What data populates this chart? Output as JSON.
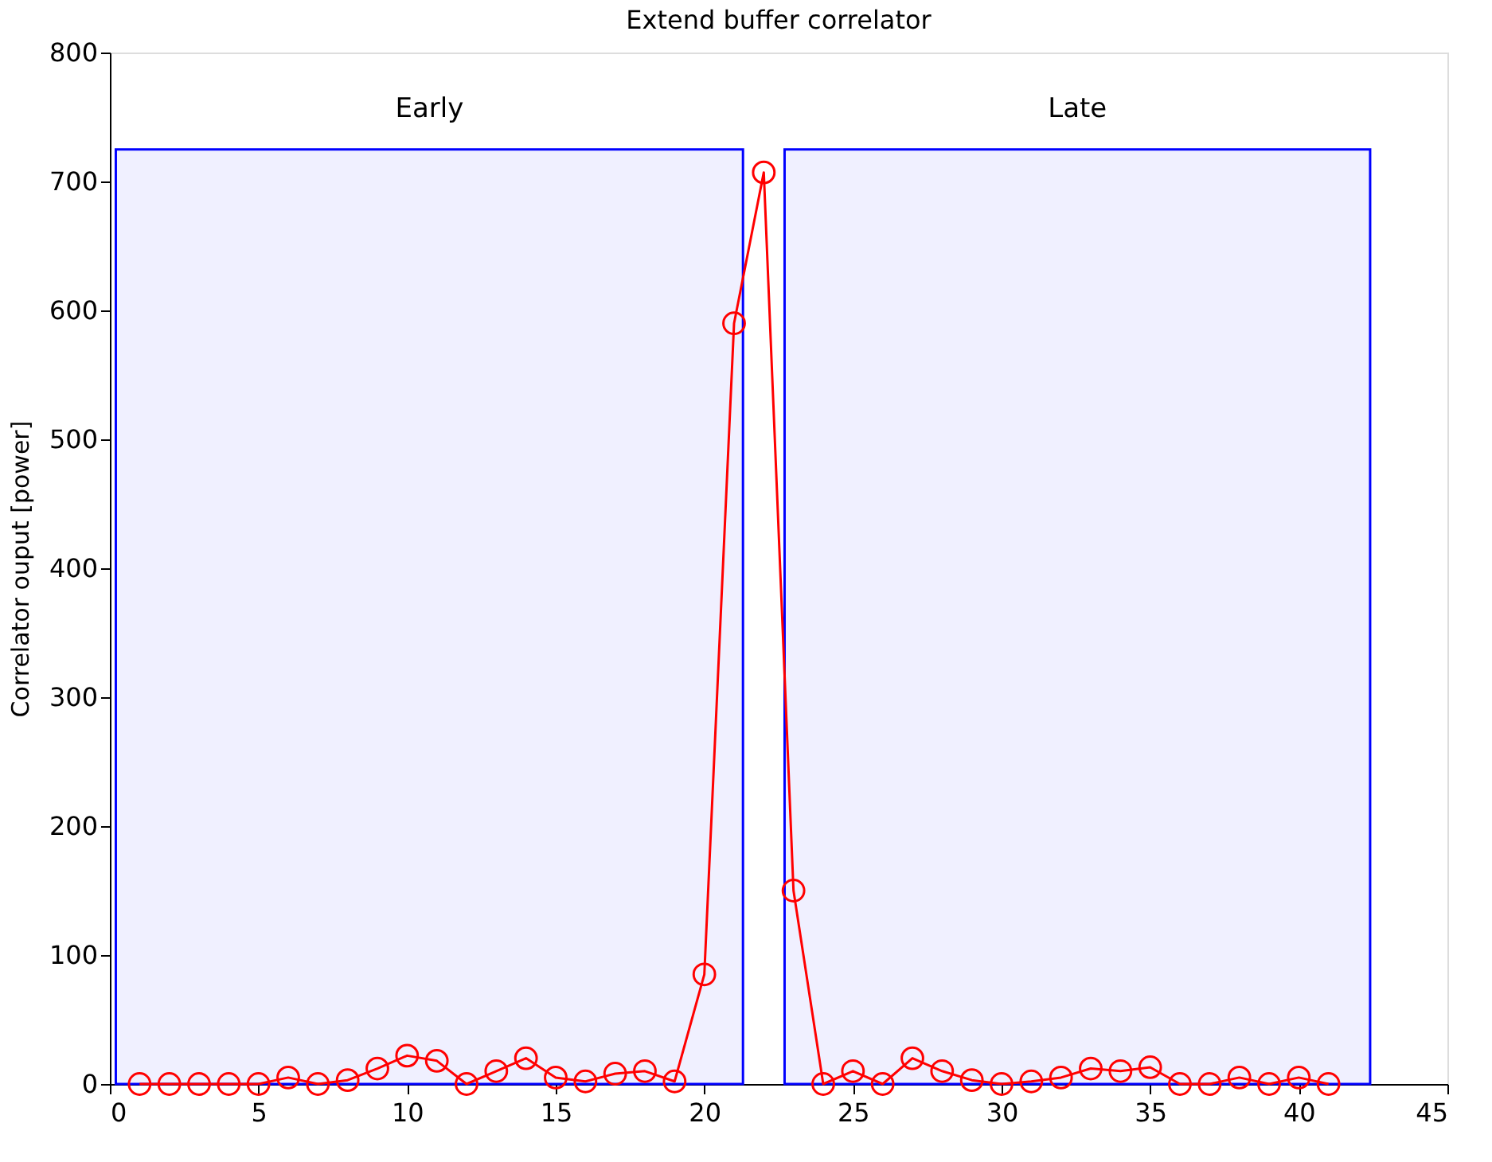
{
  "chart_data": {
    "type": "line",
    "title": "Extend buffer correlator",
    "ylabel": "Correlator ouput [power]",
    "xlim": [
      0,
      45
    ],
    "xticks": [
      0,
      5,
      10,
      15,
      20,
      25,
      30,
      35,
      40,
      45
    ],
    "ylim": [
      0,
      800
    ],
    "yticks": [
      0,
      100,
      200,
      300,
      400,
      500,
      600,
      700,
      800
    ],
    "grid": false,
    "series": [
      {
        "color": "#ff0000",
        "marker": "circle",
        "x": [
          1,
          2,
          3,
          4,
          5,
          6,
          7,
          8,
          9,
          10,
          11,
          12,
          13,
          14,
          15,
          16,
          17,
          18,
          19,
          20,
          21,
          22,
          23,
          24,
          25,
          26,
          27,
          28,
          29,
          30,
          31,
          32,
          33,
          34,
          35,
          36,
          37,
          38,
          39,
          40,
          41
        ],
        "values": [
          0,
          0,
          0,
          0,
          0,
          5,
          0,
          3,
          12,
          22,
          18,
          0,
          10,
          20,
          5,
          2,
          8,
          10,
          2,
          85,
          590,
          707,
          150,
          0,
          10,
          0,
          20,
          10,
          3,
          0,
          2,
          5,
          12,
          10,
          13,
          0,
          0,
          5,
          0,
          5,
          0
        ]
      }
    ],
    "bands": [
      {
        "axis": "x",
        "from": 0.2,
        "to": 21.3,
        "label": "Early",
        "color": "#0000ff"
      },
      {
        "axis": "x",
        "from": 22.7,
        "to": 42.4,
        "label": "Late",
        "color": "#0000ff"
      }
    ]
  }
}
